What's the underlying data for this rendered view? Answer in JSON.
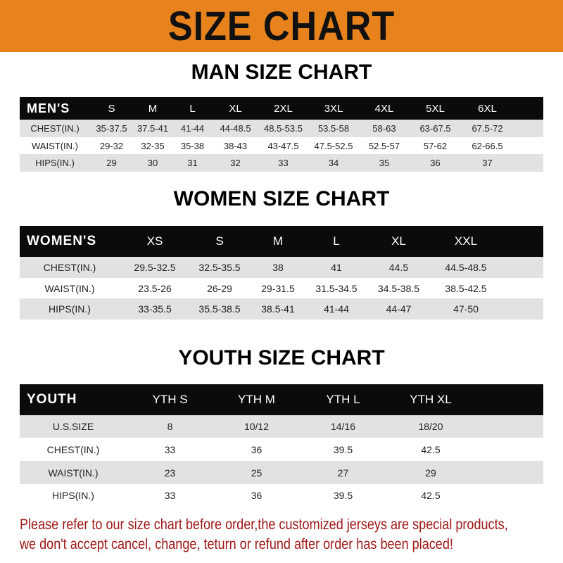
{
  "banner": {
    "title": "SIZE CHART",
    "color": "#e8821c"
  },
  "men": {
    "title": "MAN SIZE CHART",
    "header": [
      "MEN'S",
      "S",
      "M",
      "L",
      "XL",
      "2XL",
      "3XL",
      "4XL",
      "5XL",
      "6XL"
    ],
    "rows": [
      [
        "CHEST(IN.)",
        "35-37.5",
        "37.5-41",
        "41-44",
        "44-48.5",
        "48.5-53.5",
        "53.5-58",
        "58-63",
        "63-67.5",
        "67.5-72"
      ],
      [
        "WAIST(IN.)",
        "29-32",
        "32-35",
        "35-38",
        "38-43",
        "43-47.5",
        "47.5-52.5",
        "52.5-57",
        "57-62",
        "62-66.5"
      ],
      [
        "HIPS(IN.)",
        "29",
        "30",
        "31",
        "32",
        "33",
        "34",
        "35",
        "36",
        "37"
      ]
    ]
  },
  "women": {
    "title": "WOMEN SIZE CHART",
    "header": [
      "WOMEN'S",
      "XS",
      "S",
      "M",
      "L",
      "XL",
      "XXL"
    ],
    "rows": [
      [
        "CHEST(IN.)",
        "29.5-32.5",
        "32.5-35.5",
        "38",
        "41",
        "44.5",
        "44.5-48.5"
      ],
      [
        "WAIST(IN.)",
        "23.5-26",
        "26-29",
        "29-31.5",
        "31.5-34.5",
        "34.5-38.5",
        "38.5-42.5"
      ],
      [
        "HIPS(IN.)",
        "33-35.5",
        "35.5-38.5",
        "38.5-41",
        "41-44",
        "44-47",
        "47-50"
      ]
    ]
  },
  "youth": {
    "title": "YOUTH SIZE CHART",
    "header": [
      "YOUTH",
      "YTH S",
      "YTH M",
      "YTH L",
      "YTH XL"
    ],
    "rows": [
      [
        "U.S.SIZE",
        "8",
        "10/12",
        "14/16",
        "18/20"
      ],
      [
        "CHEST(IN.)",
        "33",
        "36",
        "39.5",
        "42.5"
      ],
      [
        "WAIST(IN.)",
        "23",
        "25",
        "27",
        "29"
      ],
      [
        "HIPS(IN.)",
        "33",
        "36",
        "39.5",
        "42.5"
      ]
    ]
  },
  "footer": {
    "line1": "Please refer to our size chart before order,the customized jerseys are special products,",
    "line2": "we don't accept cancel, change, teturn or refund after order has been placed!",
    "color": "#a01818"
  }
}
